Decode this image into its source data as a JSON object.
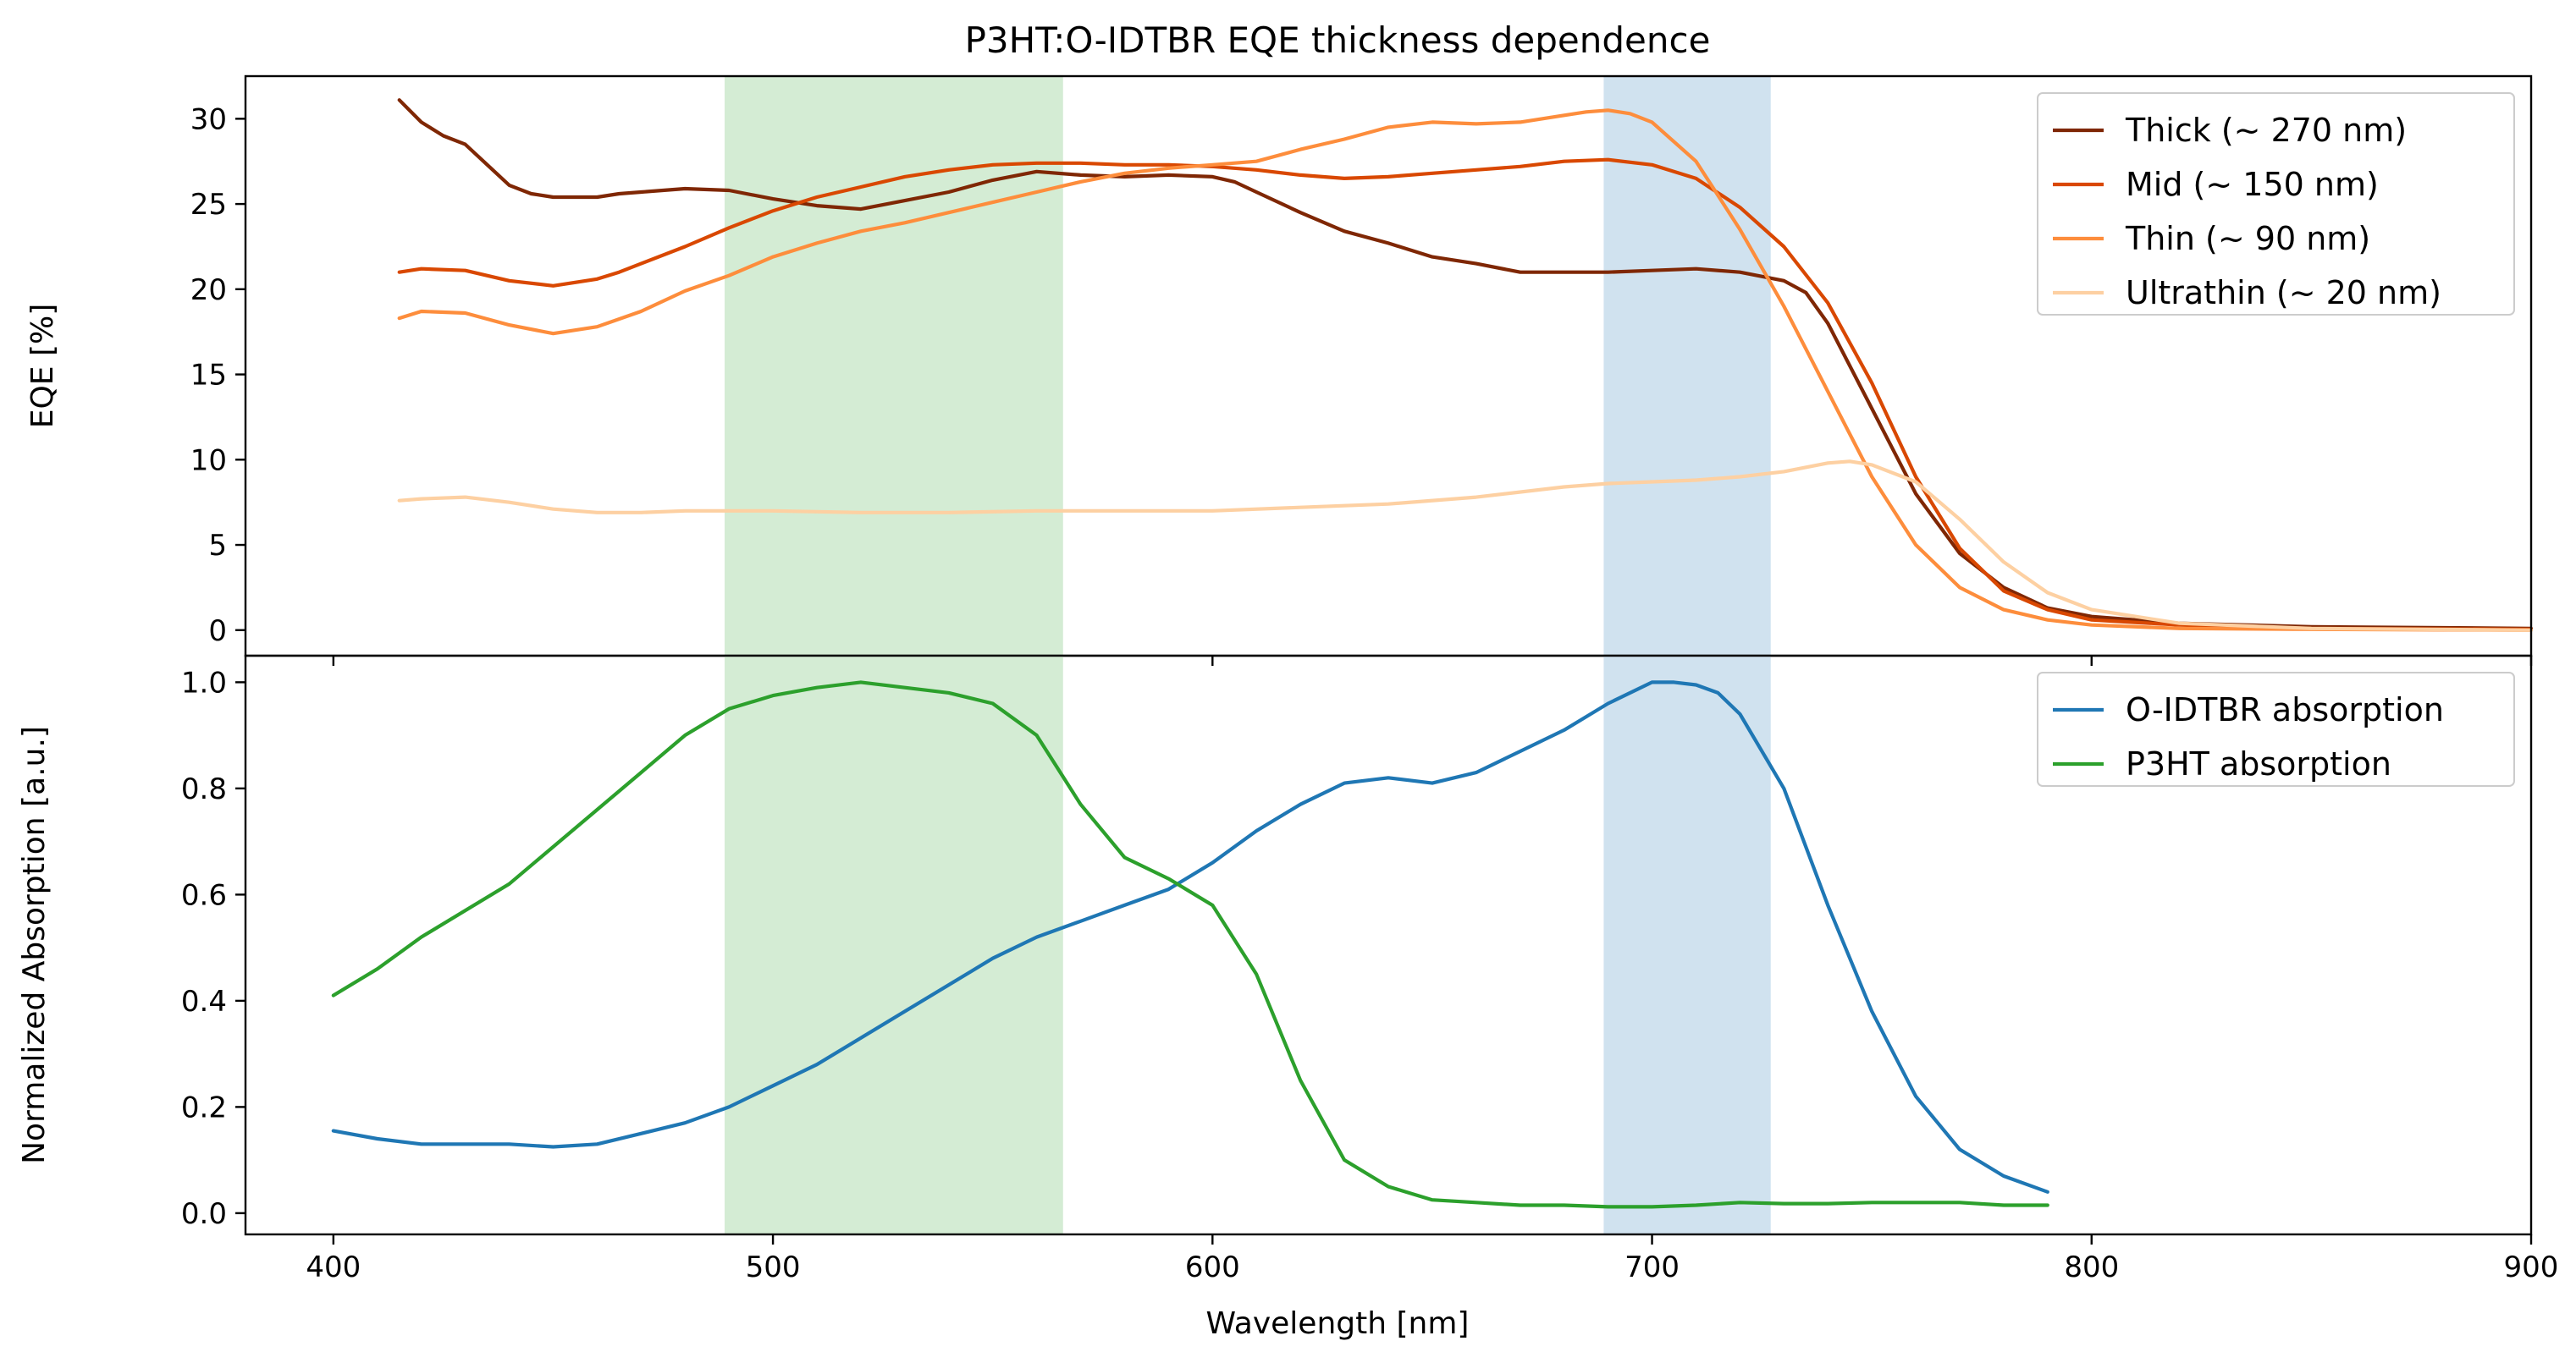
{
  "title": "P3HT:O-IDTBR EQE thickness dependence",
  "xlabel": "Wavelength [nm]",
  "colors": {
    "thick": "#7f2704",
    "mid": "#d94801",
    "thin": "#fd8d3c",
    "ultrathin": "#fdd0a2",
    "oidtbr": "#1f77b4",
    "p3ht": "#2ca02c",
    "band_green": "#d4ecd4",
    "band_blue": "#d0e2ef"
  },
  "chart_data": [
    {
      "type": "line",
      "ylabel": "EQE [%]",
      "xlim": [
        380,
        900
      ],
      "ylim": [
        -1.5,
        32.5
      ],
      "xticks": [
        400,
        500,
        600,
        700,
        800,
        900
      ],
      "yticks": [
        0,
        5,
        10,
        15,
        20,
        25,
        30
      ],
      "legend_position": "top-right",
      "shaded_bands": [
        {
          "x0": 489,
          "x1": 566,
          "color": "green"
        },
        {
          "x0": 689,
          "x1": 727,
          "color": "blue"
        }
      ],
      "series": [
        {
          "name": "Thick (~ 270 nm)",
          "color_key": "thick",
          "x": [
            415,
            420,
            425,
            430,
            435,
            440,
            445,
            450,
            455,
            460,
            465,
            470,
            480,
            490,
            500,
            510,
            520,
            530,
            540,
            550,
            560,
            570,
            580,
            590,
            600,
            605,
            610,
            620,
            630,
            640,
            650,
            660,
            670,
            680,
            690,
            700,
            710,
            720,
            730,
            735,
            740,
            750,
            760,
            770,
            780,
            790,
            800,
            820,
            850,
            900
          ],
          "y": [
            31.1,
            29.8,
            29.0,
            28.5,
            27.3,
            26.1,
            25.6,
            25.4,
            25.4,
            25.4,
            25.6,
            25.7,
            25.9,
            25.8,
            25.3,
            24.9,
            24.7,
            25.2,
            25.7,
            26.4,
            26.9,
            26.7,
            26.6,
            26.7,
            26.6,
            26.3,
            25.7,
            24.5,
            23.4,
            22.7,
            21.9,
            21.5,
            21.0,
            21.0,
            21.0,
            21.1,
            21.2,
            21.0,
            20.5,
            19.8,
            18.0,
            13.0,
            8.0,
            4.5,
            2.5,
            1.3,
            0.8,
            0.4,
            0.2,
            0.1
          ]
        },
        {
          "name": "Mid (~ 150 nm)",
          "color_key": "mid",
          "x": [
            415,
            420,
            430,
            440,
            450,
            460,
            465,
            470,
            480,
            490,
            500,
            510,
            520,
            530,
            540,
            550,
            560,
            570,
            580,
            590,
            600,
            610,
            620,
            630,
            640,
            650,
            660,
            670,
            680,
            690,
            700,
            710,
            720,
            730,
            740,
            750,
            760,
            770,
            780,
            790,
            800,
            820,
            850,
            900
          ],
          "y": [
            21.0,
            21.2,
            21.1,
            20.5,
            20.2,
            20.6,
            21.0,
            21.5,
            22.5,
            23.6,
            24.6,
            25.4,
            26.0,
            26.6,
            27.0,
            27.3,
            27.4,
            27.4,
            27.3,
            27.3,
            27.2,
            27.0,
            26.7,
            26.5,
            26.6,
            26.8,
            27.0,
            27.2,
            27.5,
            27.6,
            27.3,
            26.5,
            24.8,
            22.5,
            19.2,
            14.5,
            9.0,
            4.8,
            2.3,
            1.2,
            0.6,
            0.3,
            0.1,
            0.05
          ]
        },
        {
          "name": "Thin (~ 90 nm)",
          "color_key": "thin",
          "x": [
            415,
            420,
            430,
            440,
            450,
            460,
            470,
            480,
            490,
            500,
            510,
            520,
            530,
            540,
            550,
            560,
            570,
            580,
            590,
            600,
            610,
            620,
            630,
            640,
            650,
            660,
            670,
            680,
            685,
            690,
            695,
            700,
            710,
            720,
            730,
            740,
            750,
            760,
            770,
            780,
            790,
            800,
            820,
            850,
            900
          ],
          "y": [
            18.3,
            18.7,
            18.6,
            17.9,
            17.4,
            17.8,
            18.7,
            19.9,
            20.8,
            21.9,
            22.7,
            23.4,
            23.9,
            24.5,
            25.1,
            25.7,
            26.3,
            26.8,
            27.1,
            27.3,
            27.5,
            28.2,
            28.8,
            29.5,
            29.8,
            29.7,
            29.8,
            30.2,
            30.4,
            30.5,
            30.3,
            29.8,
            27.5,
            23.5,
            19.0,
            14.0,
            9.0,
            5.0,
            2.5,
            1.2,
            0.6,
            0.3,
            0.1,
            0.05,
            0.0
          ]
        },
        {
          "name": "Ultrathin (~ 20 nm)",
          "color_key": "ultrathin",
          "x": [
            415,
            420,
            430,
            440,
            450,
            460,
            470,
            480,
            500,
            520,
            540,
            560,
            580,
            600,
            620,
            640,
            660,
            680,
            690,
            700,
            710,
            720,
            730,
            740,
            745,
            750,
            760,
            770,
            780,
            790,
            800,
            820,
            850,
            900
          ],
          "y": [
            7.6,
            7.7,
            7.8,
            7.5,
            7.1,
            6.9,
            6.9,
            7.0,
            7.0,
            6.9,
            6.9,
            7.0,
            7.0,
            7.0,
            7.2,
            7.4,
            7.8,
            8.4,
            8.6,
            8.7,
            8.8,
            9.0,
            9.3,
            9.8,
            9.9,
            9.7,
            8.7,
            6.5,
            4.0,
            2.2,
            1.2,
            0.4,
            0.1,
            0.0
          ]
        }
      ]
    },
    {
      "type": "line",
      "ylabel": "Normalized Absorption [a.u.]",
      "xlabel": "Wavelength [nm]",
      "xlim": [
        380,
        900
      ],
      "ylim": [
        -0.04,
        1.05
      ],
      "xticks": [
        400,
        500,
        600,
        700,
        800,
        900
      ],
      "yticks": [
        0.0,
        0.2,
        0.4,
        0.6,
        0.8,
        1.0
      ],
      "legend_position": "top-right",
      "series": [
        {
          "name": "O-IDTBR absorption",
          "color_key": "oidtbr",
          "x": [
            400,
            410,
            420,
            430,
            440,
            450,
            460,
            470,
            480,
            490,
            500,
            510,
            520,
            530,
            540,
            550,
            560,
            570,
            580,
            590,
            600,
            610,
            620,
            630,
            640,
            650,
            660,
            670,
            680,
            690,
            700,
            705,
            710,
            715,
            720,
            730,
            740,
            750,
            760,
            770,
            780,
            790
          ],
          "y": [
            0.155,
            0.14,
            0.13,
            0.13,
            0.13,
            0.125,
            0.13,
            0.15,
            0.17,
            0.2,
            0.24,
            0.28,
            0.33,
            0.38,
            0.43,
            0.48,
            0.52,
            0.55,
            0.58,
            0.61,
            0.66,
            0.72,
            0.77,
            0.81,
            0.82,
            0.81,
            0.83,
            0.87,
            0.91,
            0.96,
            1.0,
            1.0,
            0.995,
            0.98,
            0.94,
            0.8,
            0.58,
            0.38,
            0.22,
            0.12,
            0.07,
            0.04
          ]
        },
        {
          "name": "P3HT absorption",
          "color_key": "p3ht",
          "x": [
            400,
            410,
            420,
            430,
            440,
            450,
            460,
            470,
            480,
            490,
            500,
            510,
            520,
            530,
            540,
            550,
            560,
            570,
            580,
            590,
            600,
            610,
            620,
            630,
            640,
            650,
            660,
            670,
            680,
            690,
            700,
            710,
            720,
            730,
            740,
            750,
            760,
            770,
            780,
            790
          ],
          "y": [
            0.41,
            0.46,
            0.52,
            0.57,
            0.62,
            0.69,
            0.76,
            0.83,
            0.9,
            0.95,
            0.975,
            0.99,
            1.0,
            0.99,
            0.98,
            0.96,
            0.9,
            0.77,
            0.67,
            0.63,
            0.58,
            0.45,
            0.25,
            0.1,
            0.05,
            0.025,
            0.02,
            0.015,
            0.015,
            0.012,
            0.012,
            0.015,
            0.02,
            0.018,
            0.018,
            0.02,
            0.02,
            0.02,
            0.015,
            0.015
          ]
        }
      ]
    }
  ]
}
